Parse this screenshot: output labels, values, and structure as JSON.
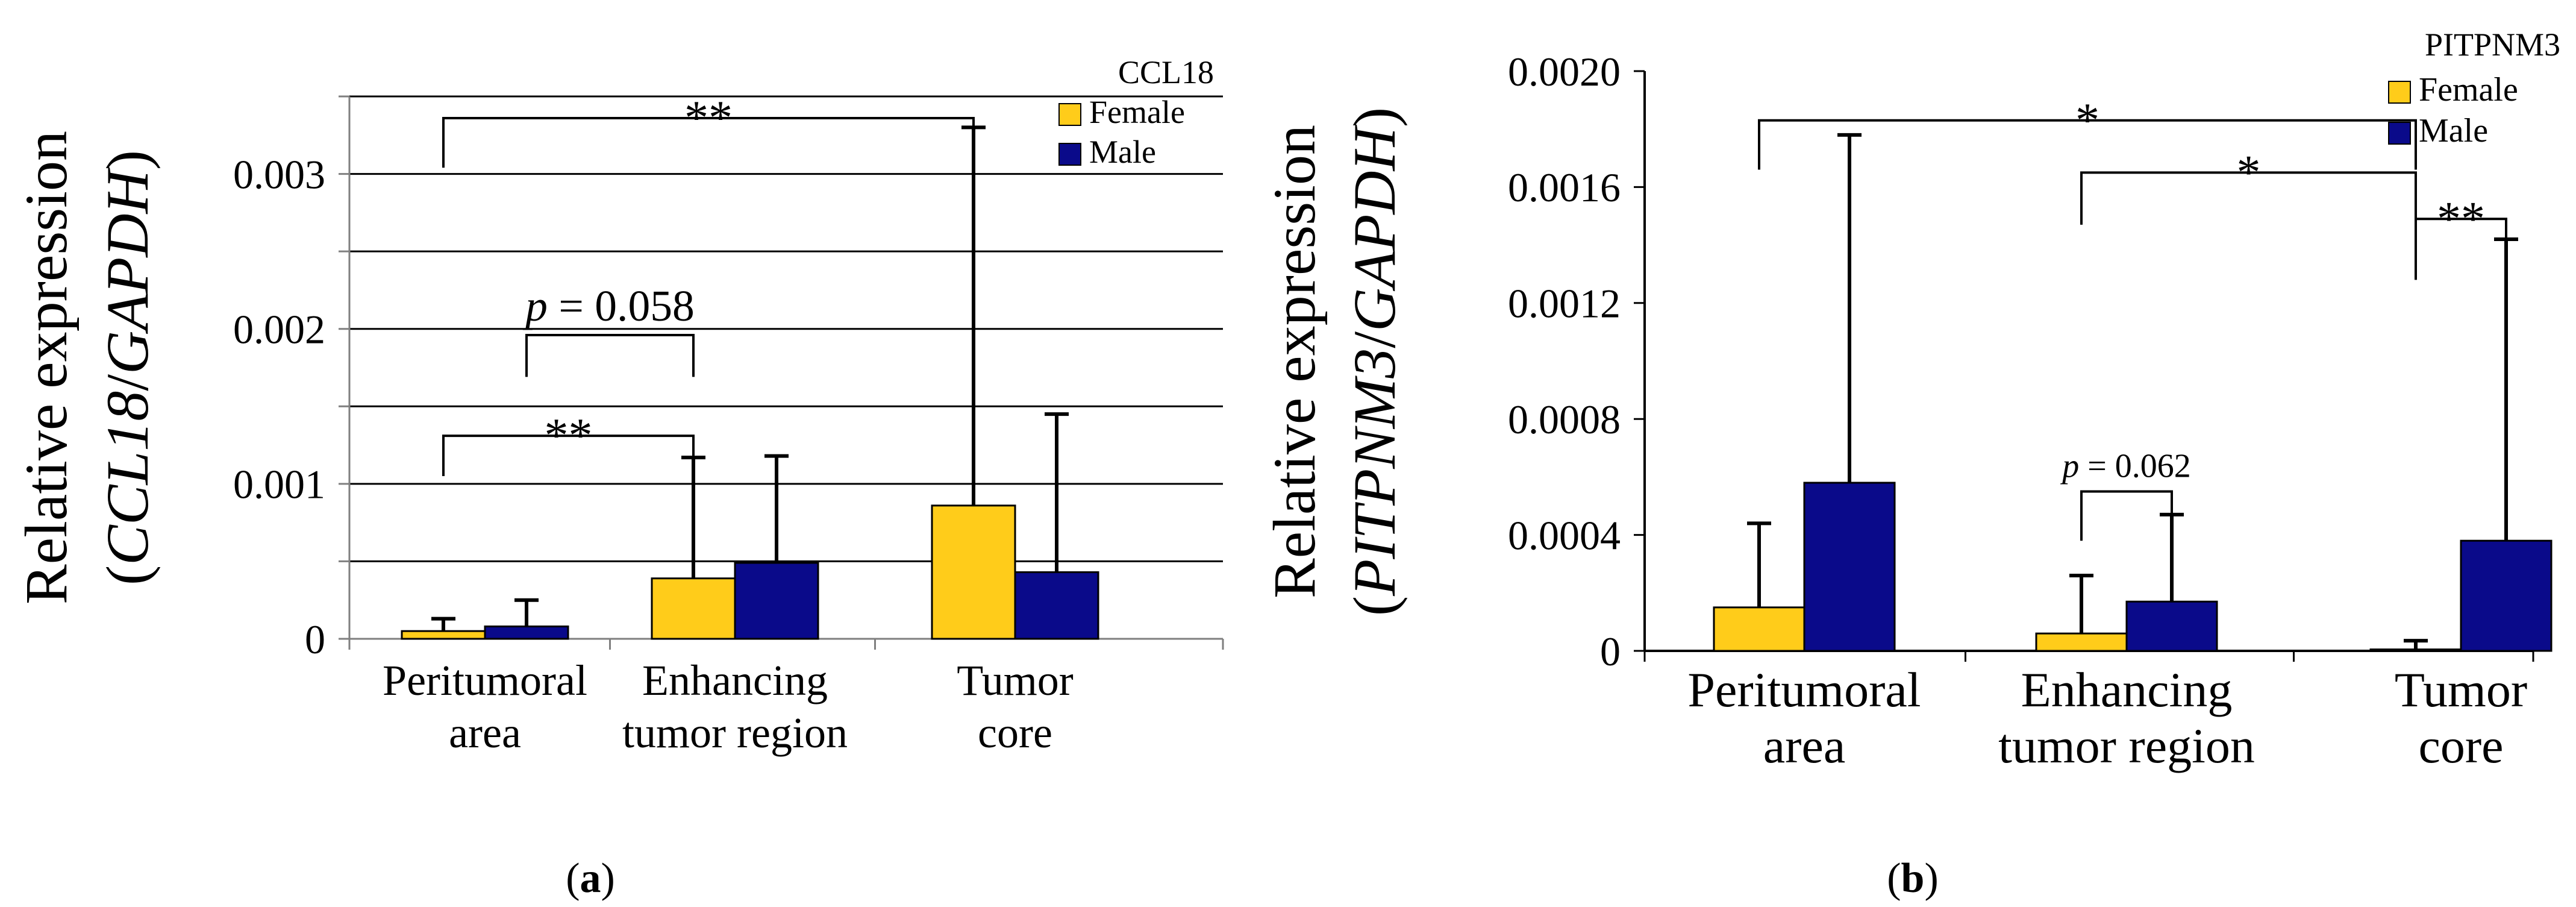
{
  "colors": {
    "female": "#FFCC1A",
    "male": "#0A0A8A",
    "grid": "#000000",
    "axis": "#7F7F7F"
  },
  "chart_data": [
    {
      "type": "bar",
      "panel_label": "(a)",
      "title": "CCL18",
      "ylabel": "Relative expression",
      "ylabel_gene": "CCL18",
      "ylabel_ref": "GAPDH",
      "categories": [
        "Peritumoral area",
        "Enhancing tumor region",
        "Tumor core"
      ],
      "category_lines": [
        [
          "Peritumoral",
          "area"
        ],
        [
          "Enhancing",
          "tumor region"
        ],
        [
          "Tumor",
          "core"
        ]
      ],
      "ylim": [
        0,
        0.0035
      ],
      "yticks": [
        0,
        0.0005,
        0.001,
        0.0015,
        0.002,
        0.0025,
        0.003,
        0.0035
      ],
      "ytick_labels": {
        "0": "0",
        "0.001": "0.001",
        "0.002": "0.002",
        "0.003": "0.003"
      },
      "grid": true,
      "legend_position": "top-right",
      "series": [
        {
          "name": "Female",
          "values": [
            5e-05,
            0.00039,
            0.00086
          ],
          "error": [
            8e-05,
            0.00078,
            0.00244
          ]
        },
        {
          "name": "Male",
          "values": [
            8e-05,
            0.00049,
            0.00043
          ],
          "error": [
            0.00017,
            0.00069,
            0.00102
          ]
        }
      ],
      "annotations": [
        {
          "text": "**",
          "from": [
            0,
            0
          ],
          "to": [
            2,
            0
          ],
          "level": 0.00336,
          "drop": 0.00032,
          "italic_p": false
        },
        {
          "text": "0.058",
          "from": [
            0,
            1
          ],
          "to": [
            1,
            0
          ],
          "level": 0.00196,
          "drop": 0.00027,
          "italic_p": true
        },
        {
          "text": "**",
          "from": [
            0,
            0
          ],
          "to": [
            1,
            0
          ],
          "level": 0.00131,
          "drop": 0.00026,
          "italic_p": false
        }
      ]
    },
    {
      "type": "bar",
      "panel_label": "(b)",
      "title": "PITPNM3",
      "ylabel": "Relative expression",
      "ylabel_gene": "PITPNM3",
      "ylabel_ref": "GAPDH",
      "categories": [
        "Peritumoral area",
        "Enhancing tumor region",
        "Tumor core"
      ],
      "category_lines": [
        [
          "Peritumoral",
          "area"
        ],
        [
          "Enhancing",
          "tumor region"
        ],
        [
          "Tumor",
          "core"
        ]
      ],
      "ylim": [
        0,
        0.002
      ],
      "yticks": [
        0,
        0.0004,
        0.0008,
        0.0012,
        0.0016,
        0.002
      ],
      "ytick_labels": {
        "0": "0",
        "0.0004": "0.0004",
        "0.0008": "0.0008",
        "0.0012": "0.0012",
        "0.0016": "0.0016",
        "0.002": "0.0020"
      },
      "grid": false,
      "legend_position": "top-right",
      "series": [
        {
          "name": "Female",
          "values": [
            0.00015,
            6e-05,
            5e-06
          ],
          "error": [
            0.00029,
            0.0002,
            3e-05
          ]
        },
        {
          "name": "Male",
          "values": [
            0.00058,
            0.00017,
            0.00038
          ],
          "error": [
            0.0012,
            0.0003,
            0.00104
          ]
        }
      ],
      "annotations": [
        {
          "text": "*",
          "from": [
            0,
            0
          ],
          "to": [
            2,
            0
          ],
          "level": 0.00183,
          "drop": 0.00017,
          "italic_p": false
        },
        {
          "text": "*",
          "from": [
            1,
            0
          ],
          "to": [
            2,
            0
          ],
          "level": 0.00165,
          "drop": 0.00018,
          "italic_p": false
        },
        {
          "text": "**",
          "from": [
            2,
            0
          ],
          "to": [
            2,
            1
          ],
          "level": 0.00149,
          "drop": 0.00021,
          "italic_p": false
        },
        {
          "text": "0.062",
          "from": [
            1,
            0
          ],
          "to": [
            1,
            1
          ],
          "level": 0.00055,
          "drop": 0.00017,
          "italic_p": true
        }
      ]
    }
  ]
}
